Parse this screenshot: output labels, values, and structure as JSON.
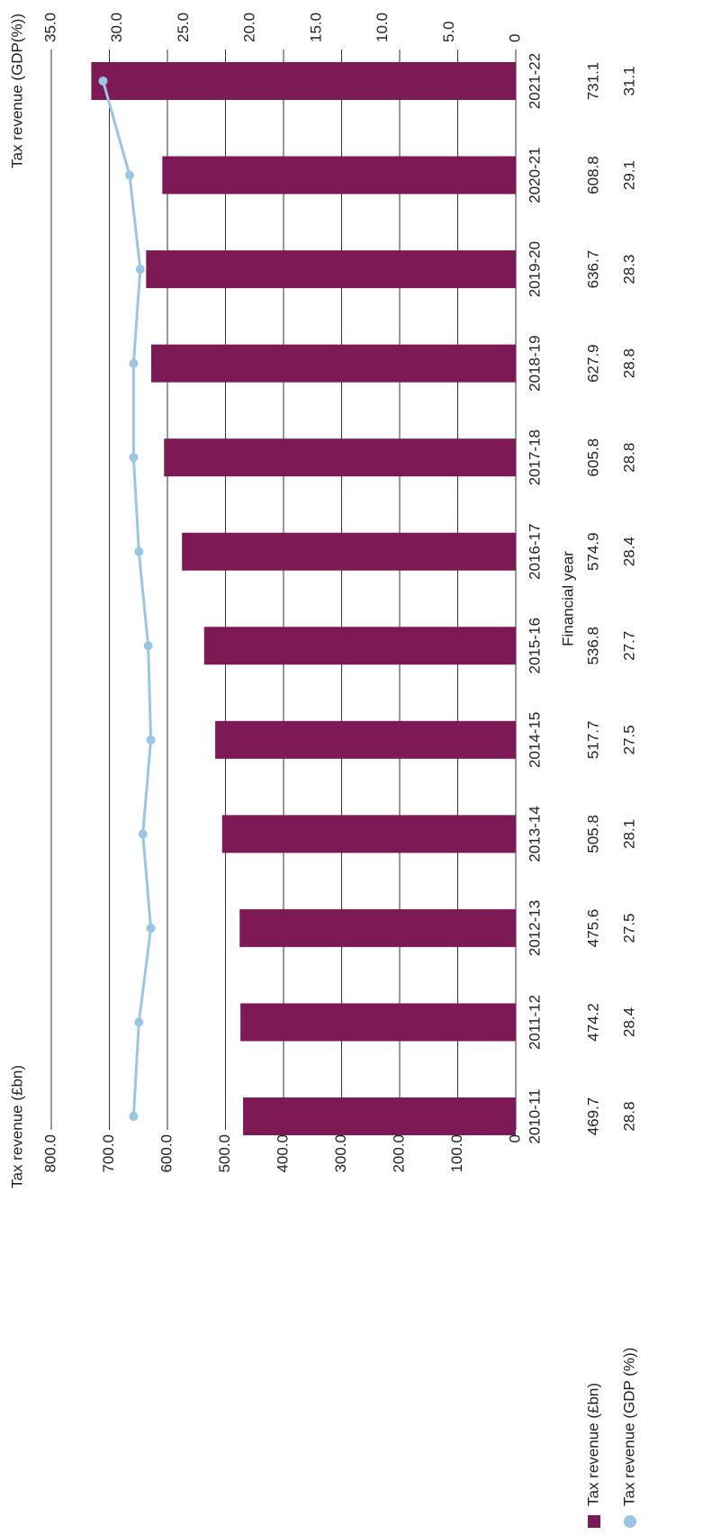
{
  "chart_data": {
    "type": "bar",
    "x_label": "Financial year",
    "y_label": "Tax revenue (£bn)",
    "y2_label": "Tax revenue (GDP(%))",
    "categories": [
      "2010-11",
      "2011-12",
      "2012-13",
      "2013-14",
      "2014-15",
      "2015-16",
      "2016-17",
      "2017-18",
      "2018-19",
      "2019-20",
      "2020-21",
      "2021-22"
    ],
    "series": [
      {
        "name": "Tax revenue (£bn)",
        "type": "bar",
        "color": "#7d1a55",
        "values": [
          469.7,
          474.2,
          475.6,
          505.8,
          517.7,
          536.8,
          574.9,
          605.8,
          627.9,
          636.7,
          608.8,
          731.1
        ]
      },
      {
        "name": "Tax revenue (GDP (%))",
        "type": "line",
        "axis": "y2",
        "color": "#9ac6e6",
        "values": [
          28.8,
          28.4,
          27.5,
          28.1,
          27.5,
          27.7,
          28.4,
          28.8,
          28.8,
          28.3,
          29.1,
          31.1
        ]
      }
    ],
    "ylim": [
      0,
      800
    ],
    "yticks": [
      0,
      {
        "value": 100,
        "label": "100.0"
      },
      {
        "value": 200,
        "label": "200.0"
      },
      {
        "value": 300,
        "label": "300.0"
      },
      {
        "value": 400,
        "label": "400.0"
      },
      {
        "value": 500,
        "label": "500.0"
      },
      {
        "value": 600,
        "label": "600.0"
      },
      {
        "value": 700,
        "label": "700.0"
      },
      {
        "value": 800,
        "label": "800.0"
      }
    ],
    "y2lim": [
      0,
      35
    ],
    "y2ticks": [
      0,
      {
        "value": 5,
        "label": "5.0"
      },
      {
        "value": 10,
        "label": "10.0"
      },
      {
        "value": 15,
        "label": "15.0"
      },
      {
        "value": 20,
        "label": "20.0"
      },
      {
        "value": 25,
        "label": "25.0"
      },
      {
        "value": 30,
        "label": "30.0"
      },
      {
        "value": 35,
        "label": "35.0"
      }
    ],
    "grid": true
  }
}
